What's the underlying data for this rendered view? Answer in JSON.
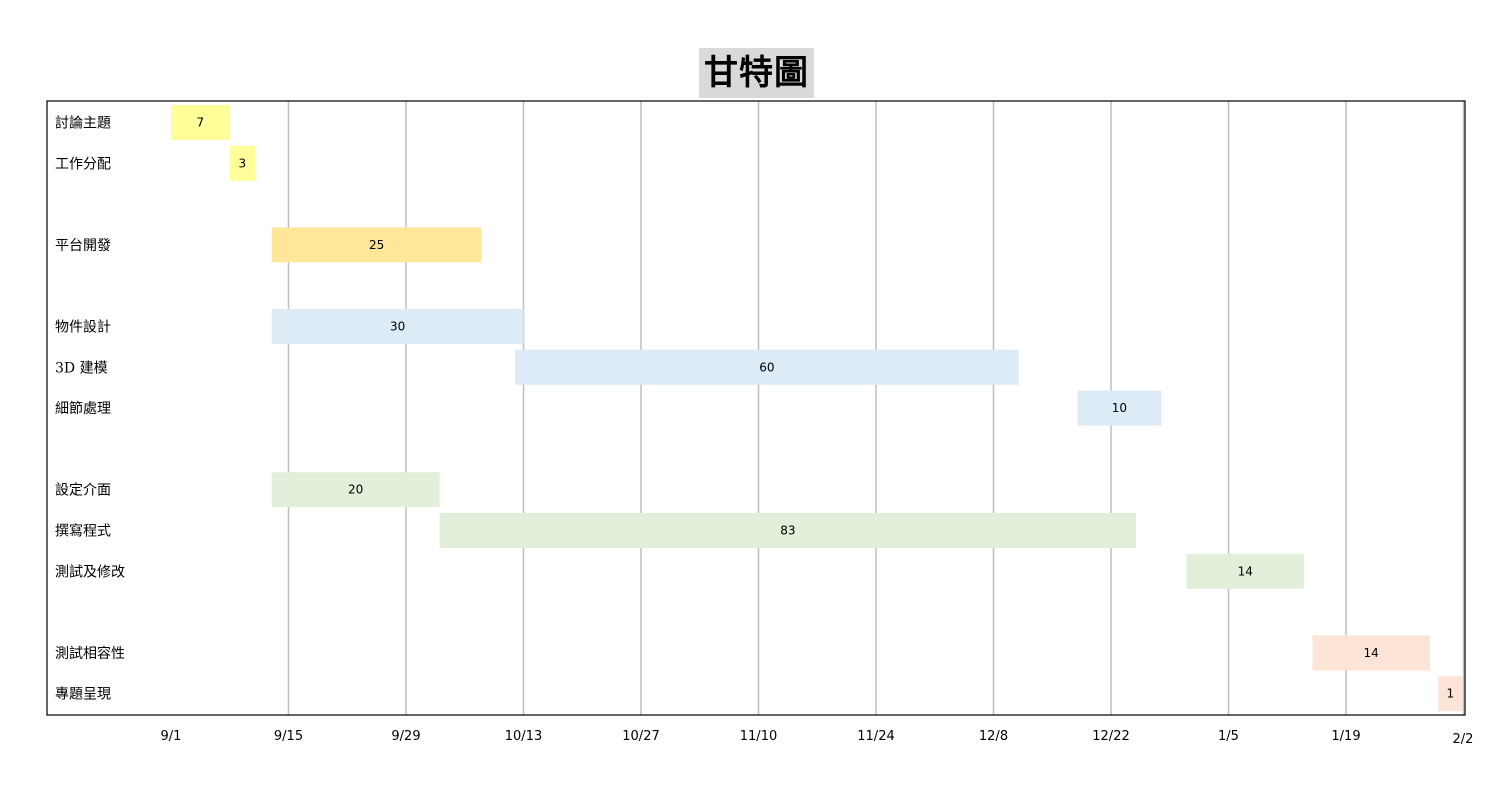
{
  "chart_data": {
    "type": "bar",
    "orientation": "horizontal-gantt",
    "title": "甘特圖",
    "x_axis": {
      "ticks": [
        "9/1",
        "9/15",
        "9/29",
        "10/13",
        "10/27",
        "11/10",
        "11/24",
        "12/8",
        "12/22",
        "1/5",
        "1/19",
        "2/2"
      ],
      "tick_interval_days": 14,
      "range_days": [
        0,
        154
      ],
      "grid": true
    },
    "tasks": [
      {
        "name": "討論主題",
        "start_day": 0,
        "duration": 7,
        "color": "#ffff99"
      },
      {
        "name": "工作分配",
        "start_day": 7,
        "duration": 3,
        "color": "#ffff99"
      },
      {
        "name": "",
        "start_day": null,
        "duration": null,
        "color": ""
      },
      {
        "name": "平台開發",
        "start_day": 12,
        "duration": 25,
        "color": "#ffe699"
      },
      {
        "name": "",
        "start_day": null,
        "duration": null,
        "color": ""
      },
      {
        "name": "物件設計",
        "start_day": 12,
        "duration": 30,
        "color": "#ddebf7"
      },
      {
        "name": "3D 建模",
        "start_day": 41,
        "duration": 60,
        "color": "#ddebf7"
      },
      {
        "name": "細節處理",
        "start_day": 108,
        "duration": 10,
        "color": "#ddebf7"
      },
      {
        "name": "",
        "start_day": null,
        "duration": null,
        "color": ""
      },
      {
        "name": "設定介面",
        "start_day": 12,
        "duration": 20,
        "color": "#e2efda"
      },
      {
        "name": "撰寫程式",
        "start_day": 32,
        "duration": 83,
        "color": "#e2efda"
      },
      {
        "name": "測試及修改",
        "start_day": 121,
        "duration": 14,
        "color": "#e2efda"
      },
      {
        "name": "",
        "start_day": null,
        "duration": null,
        "color": ""
      },
      {
        "name": "測試相容性",
        "start_day": 136,
        "duration": 14,
        "color": "#fce4d6"
      },
      {
        "name": "專題呈現",
        "start_day": 151,
        "duration": 1,
        "color": "#fce4d6"
      }
    ]
  }
}
